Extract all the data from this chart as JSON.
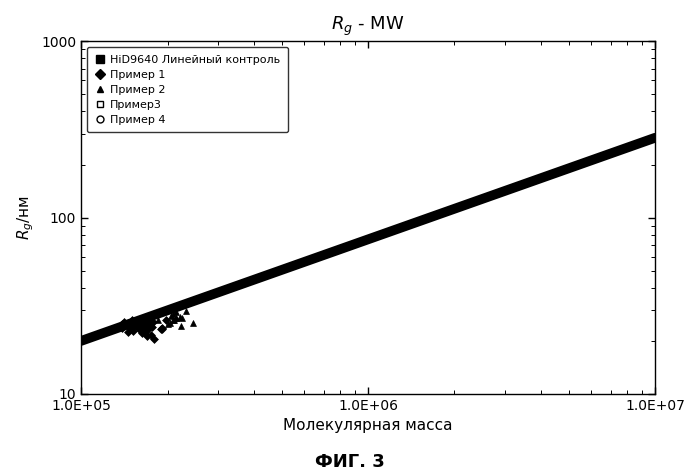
{
  "title_part1": "$\\mathit{R}$",
  "title_part2": "$_{\\mathit{g}}$",
  "title_part3": " - MW",
  "xlabel": "Молекулярная масса",
  "ylabel": "$R_{g}$/нм",
  "xmin": 100000.0,
  "xmax": 10000000.0,
  "ymin": 10,
  "ymax": 1000,
  "background_color": "#ffffff",
  "fig_caption": "ФИГ. 3",
  "legend_entries": [
    {
      "label": "HiD9640 Линейный контроль",
      "marker": "s",
      "fc": "black",
      "ec": "black",
      "markersize": 6
    },
    {
      "label": "Пример 1",
      "marker": "D",
      "fc": "black",
      "ec": "black",
      "markersize": 5
    },
    {
      "label": "Пример 2",
      "marker": "^",
      "fc": "black",
      "ec": "black",
      "markersize": 5
    },
    {
      "label": "Пример3",
      "marker": "s",
      "fc": "white",
      "ec": "black",
      "markersize": 5
    },
    {
      "label": "Пример 4",
      "marker": "o",
      "fc": "white",
      "ec": "black",
      "markersize": 5
    }
  ],
  "line_slope": 0.576,
  "line_intercept_log": -1.579,
  "line_color": "black",
  "line_linewidth": 7,
  "cluster1_x_log": 5.22,
  "cluster1_y_log": 1.38,
  "cluster1_n": 40,
  "cluster1_sx": 0.04,
  "cluster1_sy": 0.025,
  "cluster2_x_log": 5.33,
  "cluster2_y_log": 1.43,
  "cluster2_n": 15,
  "cluster2_sx": 0.035,
  "cluster2_sy": 0.02
}
